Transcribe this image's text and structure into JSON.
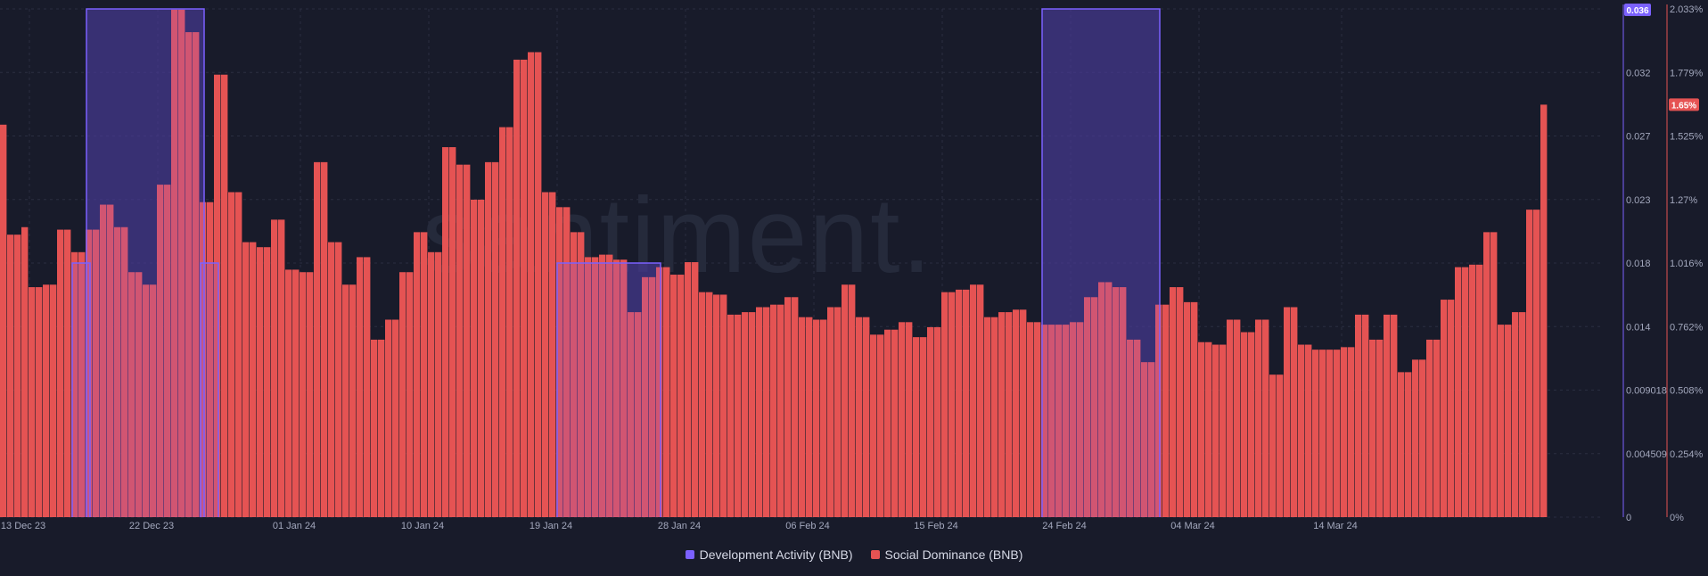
{
  "chart_data": {
    "type": "bar",
    "watermark": "santiment.",
    "colors": {
      "background": "#181b2a",
      "dev_activity": "#7b61ff",
      "social_dominance": "#e55353"
    },
    "x_tick_labels": [
      "13 Dec 23",
      "22 Dec 23",
      "01 Jan 24",
      "10 Jan 24",
      "19 Jan 24",
      "28 Jan 24",
      "06 Feb 24",
      "15 Feb 24",
      "24 Feb 24",
      "04 Mar 24",
      "14 Mar 24"
    ],
    "x_tick_day_index": [
      0,
      9,
      19,
      28,
      37,
      46,
      55,
      64,
      73,
      82,
      92
    ],
    "y_left": {
      "series": "Development Activity (BNB)",
      "ticks": [
        "0",
        "0.004509",
        "0.009018",
        "0.014",
        "0.018",
        "0.023",
        "0.027",
        "0.032",
        "0.036"
      ],
      "range": [
        0,
        0.036
      ],
      "current_value": "0.036"
    },
    "y_right": {
      "series": "Social Dominance (BNB)",
      "ticks": [
        "0%",
        "0.254%",
        "0.508%",
        "0.762%",
        "1.016%",
        "1.27%",
        "1.525%",
        "1.779%",
        "2.033%"
      ],
      "range": [
        0,
        2.033
      ],
      "current_value": "1.65%"
    },
    "series": [
      {
        "name": "Social Dominance (BNB)",
        "unit": "%",
        "axis": "right",
        "values": [
          1.57,
          1.13,
          1.13,
          1.16,
          0.92,
          0.92,
          0.93,
          0.93,
          1.15,
          1.15,
          1.06,
          1.06,
          1.15,
          1.15,
          1.25,
          1.25,
          1.16,
          1.16,
          0.98,
          0.98,
          0.93,
          0.93,
          1.33,
          1.33,
          2.03,
          2.03,
          1.94,
          1.94,
          1.26,
          1.26,
          1.77,
          1.77,
          1.3,
          1.3,
          1.1,
          1.1,
          1.08,
          1.08,
          1.19,
          1.19,
          0.99,
          0.99,
          0.98,
          0.98,
          1.42,
          1.42,
          1.1,
          1.1,
          0.93,
          0.93,
          1.04,
          1.04,
          0.71,
          0.71,
          0.79,
          0.79,
          0.98,
          0.98,
          1.14,
          1.14,
          1.06,
          1.06,
          1.48,
          1.48,
          1.41,
          1.41,
          1.27,
          1.27,
          1.42,
          1.42,
          1.56,
          1.56,
          1.83,
          1.83,
          1.86,
          1.86,
          1.3,
          1.3,
          1.24,
          1.24,
          1.14,
          1.14,
          1.04,
          1.04,
          1.05,
          1.05,
          1.03,
          1.03,
          0.82,
          0.82,
          0.96,
          0.96,
          1.0,
          1.0,
          0.97,
          0.97,
          1.02,
          1.02,
          0.9,
          0.9,
          0.89,
          0.89,
          0.81,
          0.81,
          0.82,
          0.82,
          0.84,
          0.84,
          0.85,
          0.85,
          0.88,
          0.88,
          0.8,
          0.8,
          0.79,
          0.79,
          0.84,
          0.84,
          0.93,
          0.93,
          0.8,
          0.8,
          0.73,
          0.73,
          0.75,
          0.75,
          0.78,
          0.78,
          0.72,
          0.72,
          0.76,
          0.76,
          0.9,
          0.9,
          0.91,
          0.91,
          0.93,
          0.93,
          0.8,
          0.8,
          0.82,
          0.82,
          0.83,
          0.83,
          0.78,
          0.78,
          0.77,
          0.77,
          0.77,
          0.77,
          0.78,
          0.78,
          0.88,
          0.88,
          0.94,
          0.94,
          0.92,
          0.92,
          0.71,
          0.71,
          0.62,
          0.62,
          0.85,
          0.85,
          0.92,
          0.92,
          0.86,
          0.86,
          0.7,
          0.7,
          0.69,
          0.69,
          0.79,
          0.79,
          0.74,
          0.74,
          0.79,
          0.79,
          0.57,
          0.57,
          0.84,
          0.84,
          0.69,
          0.69,
          0.67,
          0.67,
          0.67,
          0.67,
          0.68,
          0.68,
          0.81,
          0.81,
          0.71,
          0.71,
          0.81,
          0.81,
          0.58,
          0.58,
          0.63,
          0.63,
          0.71,
          0.71,
          0.87,
          0.87,
          1.0,
          1.0,
          1.01,
          1.01,
          1.14,
          1.14,
          0.77,
          0.77,
          0.82,
          0.82,
          1.23,
          1.23,
          1.65
        ]
      },
      {
        "name": "Development Activity (BNB)",
        "axis": "left",
        "segments": [
          {
            "from": "18 Dec 23",
            "to": "19 Dec 23",
            "value": 0.018
          },
          {
            "from": "19 Dec 23",
            "to": "27 Dec 23",
            "value": 0.036
          },
          {
            "from": "27 Dec 23",
            "to": "28 Dec 23",
            "value": 0.018
          },
          {
            "from": "21 Jan 24",
            "to": "28 Jan 24",
            "value": 0.018
          },
          {
            "from": "24 Feb 24",
            "to": "03 Mar 24",
            "value": 0.036
          }
        ]
      }
    ]
  },
  "legend": [
    {
      "label": "Development Activity (BNB)",
      "color": "#7b61ff"
    },
    {
      "label": "Social Dominance (BNB)",
      "color": "#e55353"
    }
  ]
}
